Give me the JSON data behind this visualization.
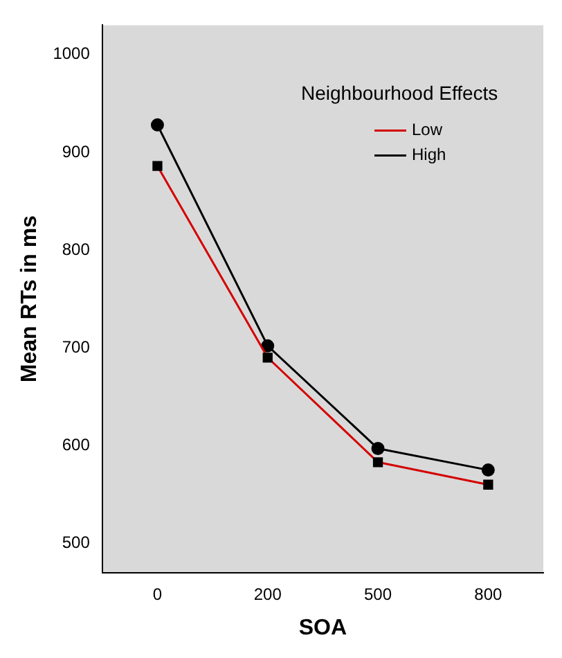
{
  "chart_data": {
    "type": "line",
    "xlabel": "SOA",
    "ylabel": "Mean RTs in ms",
    "legend_title": "Neighbourhood Effects",
    "categories": [
      "0",
      "200",
      "500",
      "800"
    ],
    "series": [
      {
        "name": "Low",
        "color": "#d40000",
        "marker": "square",
        "values": [
          886,
          690,
          583,
          560
        ]
      },
      {
        "name": "High",
        "color": "#000000",
        "marker": "circle",
        "values": [
          928,
          702,
          597,
          575
        ]
      }
    ],
    "ylim": [
      470,
      1030
    ],
    "yticks": [
      500,
      600,
      700,
      800,
      900,
      1000
    ],
    "grid": false,
    "legend": "top right"
  }
}
